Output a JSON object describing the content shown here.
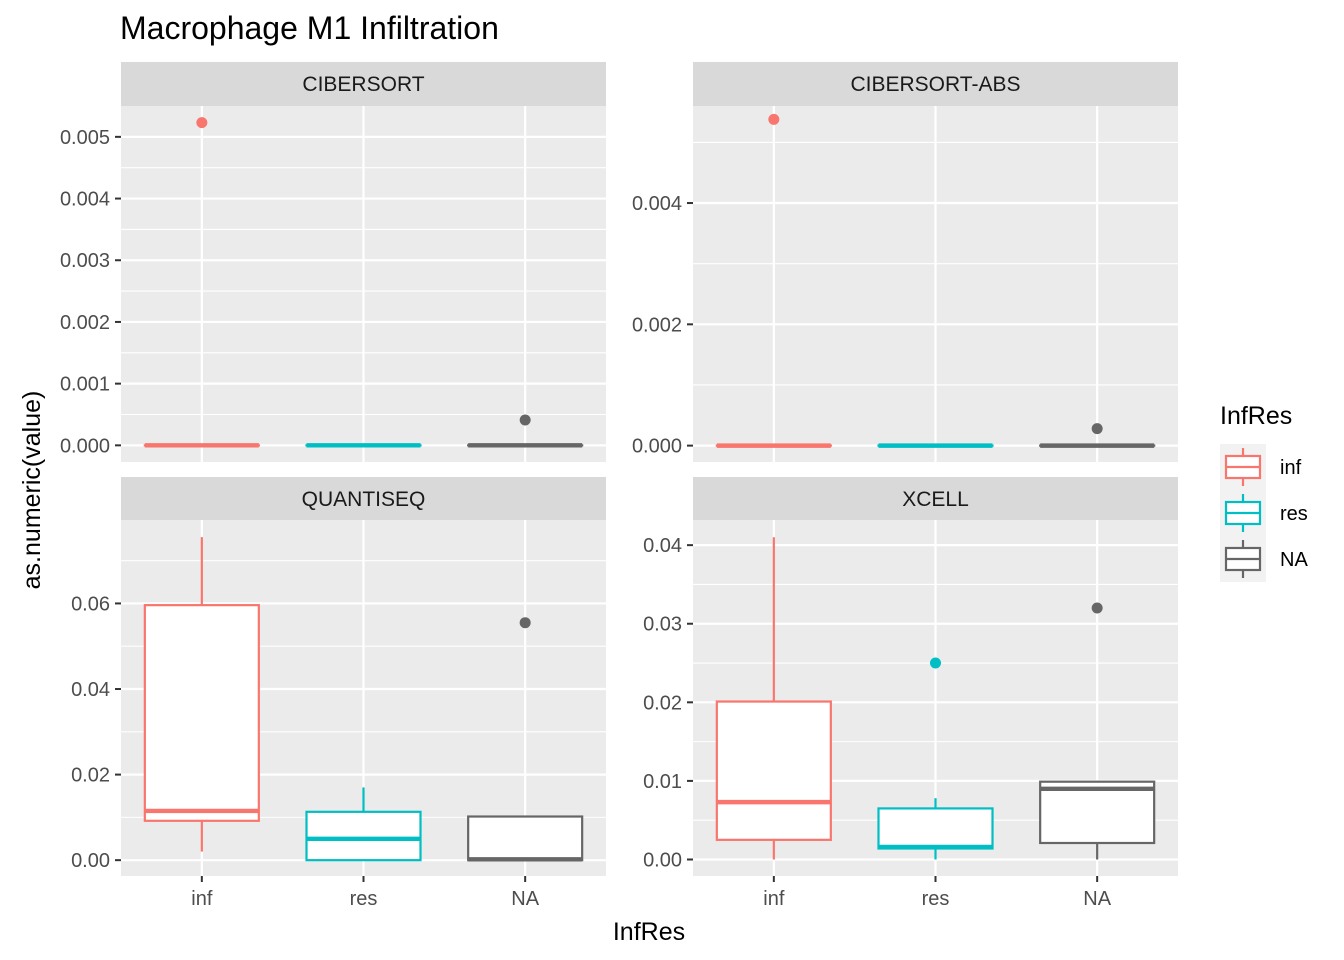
{
  "chart_data": {
    "type": "box",
    "title": "Macrophage M1 Infiltration",
    "xlabel": "InfRes",
    "ylabel": "as.numeric(value)",
    "categories": [
      "inf",
      "res",
      "NA"
    ],
    "legend": {
      "title": "InfRes",
      "placement": "right",
      "entries": [
        {
          "label": "inf",
          "color": "#F8766D"
        },
        {
          "label": "res",
          "color": "#00BFC4"
        },
        {
          "label": "NA",
          "color": "#666666"
        }
      ]
    },
    "grid": true,
    "panels": [
      {
        "name": "CIBERSORT",
        "ylim": [
          -0.00027,
          0.0055
        ],
        "yticks": [
          0.0,
          0.001,
          0.002,
          0.003,
          0.004,
          0.005
        ],
        "ytick_labels": [
          "0.000",
          "0.001",
          "0.002",
          "0.003",
          "0.004",
          "0.005"
        ],
        "boxes": [
          {
            "category": "inf",
            "min": 0,
            "q1": 0,
            "median": 0,
            "q3": 0,
            "max": 0,
            "outliers": [
              0.00523
            ]
          },
          {
            "category": "res",
            "min": 0,
            "q1": 0,
            "median": 0,
            "q3": 0,
            "max": 0,
            "outliers": []
          },
          {
            "category": "NA",
            "min": 0,
            "q1": 0,
            "median": 0,
            "q3": 0,
            "max": 0,
            "outliers": [
              0.00041
            ]
          }
        ]
      },
      {
        "name": "CIBERSORT-ABS",
        "ylim": [
          -0.00027,
          0.0056
        ],
        "yticks": [
          0.0,
          0.002,
          0.004
        ],
        "ytick_labels": [
          "0.000",
          "0.002",
          "0.004"
        ],
        "boxes": [
          {
            "category": "inf",
            "min": 0,
            "q1": 0,
            "median": 0,
            "q3": 0,
            "max": 0,
            "outliers": [
              0.00538
            ]
          },
          {
            "category": "res",
            "min": 0,
            "q1": 0,
            "median": 0,
            "q3": 0,
            "max": 0,
            "outliers": []
          },
          {
            "category": "NA",
            "min": 0,
            "q1": 0,
            "median": 0,
            "q3": 0,
            "max": 0,
            "outliers": [
              0.00028
            ]
          }
        ]
      },
      {
        "name": "QUANTISEQ",
        "ylim": [
          -0.0037,
          0.0795
        ],
        "yticks": [
          0.0,
          0.02,
          0.04,
          0.06
        ],
        "ytick_labels": [
          "0.00",
          "0.02",
          "0.04",
          "0.06"
        ],
        "boxes": [
          {
            "category": "inf",
            "min": 0.002,
            "q1": 0.0092,
            "median": 0.0115,
            "q3": 0.0596,
            "max": 0.0755,
            "outliers": []
          },
          {
            "category": "res",
            "min": 0.0,
            "q1": 0.0,
            "median": 0.005,
            "q3": 0.0113,
            "max": 0.017,
            "outliers": []
          },
          {
            "category": "NA",
            "min": 0.0,
            "q1": 0.0,
            "median": 0.0002,
            "q3": 0.0102,
            "max": 0.0102,
            "outliers": [
              0.0555
            ]
          }
        ]
      },
      {
        "name": "XCELL",
        "ylim": [
          -0.0021,
          0.0432
        ],
        "yticks": [
          0.0,
          0.01,
          0.02,
          0.03,
          0.04
        ],
        "ytick_labels": [
          "0.00",
          "0.01",
          "0.02",
          "0.03",
          "0.04"
        ],
        "boxes": [
          {
            "category": "inf",
            "min": 0.0,
            "q1": 0.0025,
            "median": 0.0073,
            "q3": 0.0201,
            "max": 0.041,
            "outliers": []
          },
          {
            "category": "res",
            "min": 0.0,
            "q1": 0.0014,
            "median": 0.0016,
            "q3": 0.0065,
            "max": 0.0078,
            "outliers": [
              0.025
            ]
          },
          {
            "category": "NA",
            "min": 0.0,
            "q1": 0.0021,
            "median": 0.009,
            "q3": 0.0099,
            "max": 0.0099,
            "outliers": [
              0.032
            ]
          }
        ]
      }
    ]
  }
}
